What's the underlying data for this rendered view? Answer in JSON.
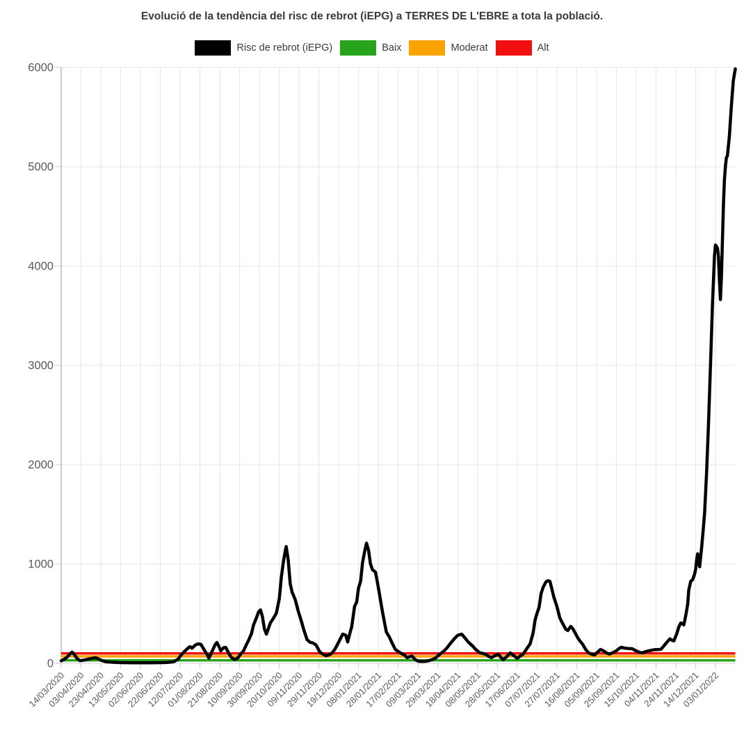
{
  "title": "Evolució de la tendència del risc de rebrot (iEPG) a TERRES DE L'EBRE a tota la població.",
  "legend": {
    "items": [
      {
        "id": "iepg",
        "label": "Risc de rebrot (iEPG)",
        "color": "#000000"
      },
      {
        "id": "baix",
        "label": "Baix",
        "color": "#28a41c"
      },
      {
        "id": "moderat",
        "label": "Moderat",
        "color": "#f9a402"
      },
      {
        "id": "alt",
        "label": "Alt",
        "color": "#f20f0f"
      }
    ]
  },
  "colors": {
    "background": "#ffffff",
    "grid": "#e4e4e4",
    "baseline": "#cfcfcf",
    "axis_line": "#9a9a9a",
    "tick_mark": "#cccccc",
    "axis_label": "#595959",
    "series_line": "#000000",
    "baix_line": "#28a41c",
    "moderat_line": "#f9a402",
    "alt_line": "#f20f0f"
  },
  "chart_data": {
    "type": "line",
    "title": "Evolució de la tendència del risc de rebrot (iEPG) a TERRES DE L'EBRE a tota la població.",
    "xlabel": "",
    "ylabel": "",
    "ylim": [
      0,
      6000
    ],
    "y_ticks": [
      0,
      1000,
      2000,
      3000,
      4000,
      5000,
      6000
    ],
    "grid": true,
    "legend_position": "top",
    "x_tick_interval_days": 20,
    "x_domain_days": [
      0,
      680
    ],
    "x_tick_labels": [
      "14/03/2020",
      "03/04/2020",
      "23/04/2020",
      "13/05/2020",
      "02/06/2020",
      "22/06/2020",
      "12/07/2020",
      "01/08/2020",
      "21/08/2020",
      "10/09/2020",
      "30/09/2020",
      "20/10/2020",
      "09/11/2020",
      "29/11/2020",
      "19/12/2020",
      "08/01/2021",
      "28/01/2021",
      "17/02/2021",
      "09/03/2021",
      "29/03/2021",
      "18/04/2021",
      "08/05/2021",
      "28/05/2021",
      "17/06/2021",
      "07/07/2021",
      "27/07/2021",
      "16/08/2021",
      "05/09/2021",
      "25/09/2021",
      "15/10/2021",
      "04/11/2021",
      "24/11/2021",
      "14/12/2021",
      "03/01/2022"
    ],
    "threshold_lines": [
      {
        "id": "baix",
        "label": "Baix",
        "value": 30,
        "color": "#28a41c"
      },
      {
        "id": "moderat",
        "label": "Moderat",
        "value": 70,
        "color": "#f9a402"
      },
      {
        "id": "alt",
        "label": "Alt",
        "value": 100,
        "color": "#f20f0f"
      }
    ],
    "series": [
      {
        "name": "Risc de rebrot (iEPG)",
        "color": "#000000",
        "points": [
          [
            0,
            25
          ],
          [
            3,
            40
          ],
          [
            6,
            62
          ],
          [
            9,
            95
          ],
          [
            11,
            112
          ],
          [
            13,
            92
          ],
          [
            16,
            48
          ],
          [
            19,
            26
          ],
          [
            23,
            32
          ],
          [
            27,
            42
          ],
          [
            31,
            50
          ],
          [
            35,
            56
          ],
          [
            38,
            42
          ],
          [
            41,
            28
          ],
          [
            45,
            16
          ],
          [
            50,
            11
          ],
          [
            55,
            9
          ],
          [
            60,
            7
          ],
          [
            66,
            6
          ],
          [
            72,
            5
          ],
          [
            78,
            5
          ],
          [
            84,
            5
          ],
          [
            90,
            5
          ],
          [
            96,
            6
          ],
          [
            102,
            7
          ],
          [
            107,
            9
          ],
          [
            111,
            12
          ],
          [
            114,
            18
          ],
          [
            118,
            42
          ],
          [
            121,
            84
          ],
          [
            125,
            125
          ],
          [
            128,
            154
          ],
          [
            130,
            168
          ],
          [
            132,
            152
          ],
          [
            135,
            182
          ],
          [
            138,
            196
          ],
          [
            141,
            190
          ],
          [
            144,
            140
          ],
          [
            147,
            91
          ],
          [
            149,
            52
          ],
          [
            152,
            115
          ],
          [
            155,
            182
          ],
          [
            157,
            210
          ],
          [
            159,
            172
          ],
          [
            161,
            126
          ],
          [
            164,
            158
          ],
          [
            166,
            160
          ],
          [
            169,
            100
          ],
          [
            172,
            55
          ],
          [
            175,
            38
          ],
          [
            178,
            52
          ],
          [
            181,
            92
          ],
          [
            184,
            126
          ],
          [
            187,
            192
          ],
          [
            189,
            231
          ],
          [
            192,
            300
          ],
          [
            194,
            385
          ],
          [
            197,
            460
          ],
          [
            199,
            515
          ],
          [
            201,
            538
          ],
          [
            203,
            470
          ],
          [
            205,
            345
          ],
          [
            207,
            294
          ],
          [
            209,
            350
          ],
          [
            211,
            406
          ],
          [
            214,
            452
          ],
          [
            217,
            504
          ],
          [
            220,
            650
          ],
          [
            222,
            860
          ],
          [
            224,
            1014
          ],
          [
            226,
            1130
          ],
          [
            227,
            1175
          ],
          [
            229,
            1040
          ],
          [
            231,
            800
          ],
          [
            233,
            715
          ],
          [
            236,
            643
          ],
          [
            239,
            528
          ],
          [
            242,
            434
          ],
          [
            245,
            328
          ],
          [
            248,
            238
          ],
          [
            251,
            212
          ],
          [
            254,
            205
          ],
          [
            257,
            185
          ],
          [
            259,
            148
          ],
          [
            261,
            112
          ],
          [
            264,
            92
          ],
          [
            267,
            76
          ],
          [
            270,
            84
          ],
          [
            273,
            100
          ],
          [
            276,
            140
          ],
          [
            279,
            196
          ],
          [
            282,
            255
          ],
          [
            284,
            294
          ],
          [
            287,
            283
          ],
          [
            289,
            215
          ],
          [
            291,
            295
          ],
          [
            293,
            364
          ],
          [
            296,
            575
          ],
          [
            298,
            615
          ],
          [
            300,
            760
          ],
          [
            302,
            825
          ],
          [
            304,
            1014
          ],
          [
            306,
            1120
          ],
          [
            308,
            1210
          ],
          [
            310,
            1140
          ],
          [
            312,
            1000
          ],
          [
            314,
            942
          ],
          [
            317,
            918
          ],
          [
            319,
            815
          ],
          [
            321,
            700
          ],
          [
            324,
            524
          ],
          [
            328,
            315
          ],
          [
            331,
            265
          ],
          [
            334,
            200
          ],
          [
            337,
            140
          ],
          [
            340,
            118
          ],
          [
            343,
            100
          ],
          [
            346,
            85
          ],
          [
            349,
            56
          ],
          [
            352,
            68
          ],
          [
            354,
            71
          ],
          [
            357,
            38
          ],
          [
            360,
            22
          ],
          [
            364,
            18
          ],
          [
            368,
            21
          ],
          [
            371,
            27
          ],
          [
            375,
            40
          ],
          [
            378,
            56
          ],
          [
            382,
            92
          ],
          [
            386,
            122
          ],
          [
            389,
            154
          ],
          [
            393,
            205
          ],
          [
            397,
            252
          ],
          [
            400,
            282
          ],
          [
            404,
            294
          ],
          [
            407,
            258
          ],
          [
            411,
            210
          ],
          [
            415,
            175
          ],
          [
            418,
            140
          ],
          [
            422,
            107
          ],
          [
            425,
            100
          ],
          [
            428,
            92
          ],
          [
            431,
            70
          ],
          [
            434,
            58
          ],
          [
            438,
            78
          ],
          [
            441,
            91
          ],
          [
            444,
            54
          ],
          [
            446,
            36
          ],
          [
            450,
            72
          ],
          [
            453,
            105
          ],
          [
            456,
            82
          ],
          [
            460,
            50
          ],
          [
            463,
            72
          ],
          [
            466,
            92
          ],
          [
            470,
            152
          ],
          [
            473,
            196
          ],
          [
            476,
            305
          ],
          [
            478,
            434
          ],
          [
            480,
            505
          ],
          [
            482,
            560
          ],
          [
            484,
            700
          ],
          [
            486,
            762
          ],
          [
            489,
            820
          ],
          [
            491,
            832
          ],
          [
            493,
            825
          ],
          [
            495,
            745
          ],
          [
            497,
            664
          ],
          [
            500,
            573
          ],
          [
            503,
            455
          ],
          [
            506,
            398
          ],
          [
            509,
            342
          ],
          [
            511,
            330
          ],
          [
            514,
            371
          ],
          [
            516,
            350
          ],
          [
            518,
            315
          ],
          [
            521,
            258
          ],
          [
            523,
            228
          ],
          [
            526,
            192
          ],
          [
            529,
            140
          ],
          [
            532,
            104
          ],
          [
            535,
            92
          ],
          [
            538,
            84
          ],
          [
            541,
            112
          ],
          [
            544,
            140
          ],
          [
            547,
            126
          ],
          [
            550,
            104
          ],
          [
            553,
            94
          ],
          [
            556,
            104
          ],
          [
            560,
            126
          ],
          [
            563,
            150
          ],
          [
            565,
            161
          ],
          [
            568,
            154
          ],
          [
            572,
            148
          ],
          [
            576,
            147
          ],
          [
            579,
            130
          ],
          [
            583,
            112
          ],
          [
            586,
            104
          ],
          [
            589,
            116
          ],
          [
            592,
            124
          ],
          [
            596,
            132
          ],
          [
            599,
            138
          ],
          [
            602,
            138
          ],
          [
            605,
            141
          ],
          [
            608,
            176
          ],
          [
            611,
            212
          ],
          [
            614,
            246
          ],
          [
            616,
            232
          ],
          [
            618,
            225
          ],
          [
            621,
            300
          ],
          [
            623,
            366
          ],
          [
            625,
            406
          ],
          [
            627,
            396
          ],
          [
            628,
            386
          ],
          [
            630,
            480
          ],
          [
            632,
            600
          ],
          [
            633,
            735
          ],
          [
            635,
            826
          ],
          [
            637,
            842
          ],
          [
            639,
            902
          ],
          [
            640,
            948
          ],
          [
            641,
            1045
          ],
          [
            642,
            1102
          ],
          [
            643,
            1020
          ],
          [
            644,
            972
          ],
          [
            646,
            1160
          ],
          [
            648,
            1390
          ],
          [
            649,
            1510
          ],
          [
            651,
            1920
          ],
          [
            653,
            2420
          ],
          [
            655,
            3020
          ],
          [
            657,
            3620
          ],
          [
            659,
            4110
          ],
          [
            660,
            4212
          ],
          [
            662,
            4180
          ],
          [
            663,
            4095
          ],
          [
            664,
            3850
          ],
          [
            665,
            3662
          ],
          [
            666,
            3905
          ],
          [
            667,
            4260
          ],
          [
            668,
            4610
          ],
          [
            669,
            4860
          ],
          [
            670,
            5005
          ],
          [
            671,
            5092
          ],
          [
            672,
            5108
          ],
          [
            674,
            5310
          ],
          [
            676,
            5610
          ],
          [
            678,
            5870
          ],
          [
            680,
            5985
          ]
        ]
      }
    ]
  }
}
